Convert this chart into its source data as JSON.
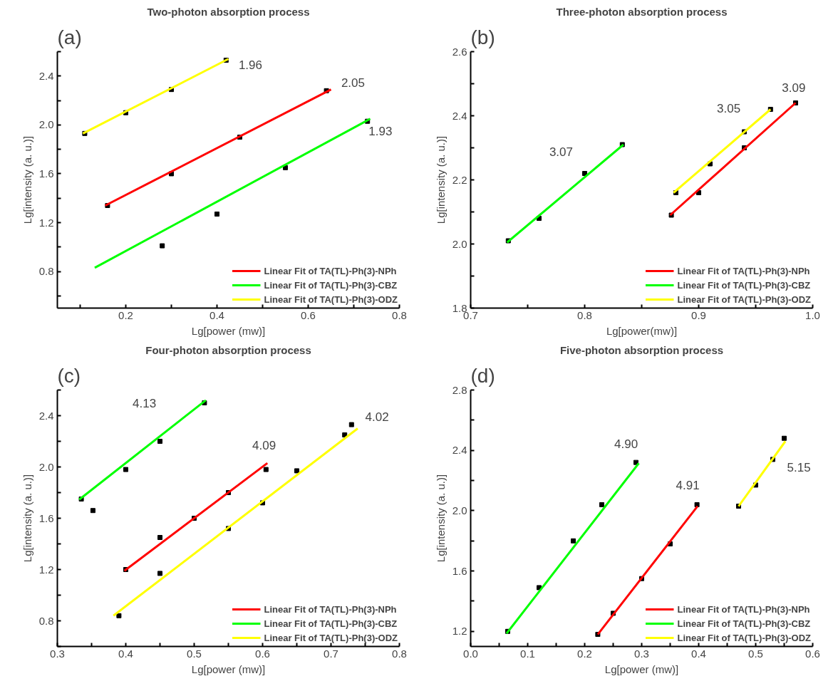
{
  "chart_data": [
    {
      "type": "line",
      "title": "Two-photon absorption process",
      "xlabel": "Lg[power (mw)]",
      "ylabel": "Lg[intensity (a. u.)]",
      "xlim": [
        0.05,
        0.8
      ],
      "ylim": [
        0.5,
        2.6
      ],
      "xticks": [
        {
          "value": 0.1,
          "label": null
        },
        0.2,
        {
          "value": 0.3,
          "label": null
        },
        0.4,
        {
          "value": 0.5,
          "label": null
        },
        0.6,
        {
          "value": 0.7,
          "label": null
        },
        0.8
      ],
      "yticks": [
        {
          "value": 0.6,
          "label": null
        },
        0.8,
        {
          "value": 1.0,
          "label": null
        },
        1.2,
        {
          "value": 1.4,
          "label": null
        },
        1.6,
        {
          "value": 1.8,
          "label": null
        },
        {
          "value": 2.0,
          "label": "2.0"
        },
        {
          "value": 2.2,
          "label": null
        },
        2.4,
        {
          "value": 2.6,
          "label": null
        }
      ],
      "grid": false,
      "legend": "bottom right",
      "annotations": [
        "(a)",
        "1.96",
        "2.05",
        "1.93"
      ],
      "series": [
        {
          "type": "scatter",
          "color": "#000000",
          "marker": "square",
          "x": [
            0.11,
            0.2,
            0.3,
            0.42
          ],
          "values": [
            1.93,
            2.1,
            2.29,
            2.53
          ]
        },
        {
          "type": "scatter",
          "color": "#000000",
          "marker": "square",
          "x": [
            0.16,
            0.3,
            0.45,
            0.64
          ],
          "values": [
            1.34,
            1.6,
            1.9,
            2.28
          ]
        },
        {
          "type": "scatter",
          "color": "#000000",
          "marker": "square",
          "x": [
            0.28,
            0.4,
            0.55,
            0.73
          ],
          "values": [
            1.01,
            1.27,
            1.65,
            2.03
          ]
        },
        {
          "name": "Linear Fit of TA(TL)-Ph(3)-NPh",
          "color": "#ff0000",
          "x": [
            0.155,
            0.65
          ],
          "values": [
            1.34,
            2.29
          ]
        },
        {
          "name": "Linear Fit of TA(TL)-Ph(3)-CBZ",
          "color": "#00ff00",
          "x": [
            0.132,
            0.736
          ],
          "values": [
            0.83,
            2.05
          ]
        },
        {
          "name": "Linear Fit of TA(TL)-Ph(3)-ODZ",
          "color": "#ffff00",
          "x": [
            0.106,
            0.425
          ],
          "values": [
            1.93,
            2.54
          ]
        }
      ]
    },
    {
      "type": "line",
      "title": "Three-photon absorption process",
      "xlabel": "Lg[power(mw)]",
      "ylabel": "Lg[intensity (a. u.)]",
      "xlim": [
        0.7,
        1.0
      ],
      "ylim": [
        1.8,
        2.6
      ],
      "xticks": [
        0.7,
        {
          "value": 0.75,
          "label": null
        },
        0.8,
        {
          "value": 0.85,
          "label": null
        },
        0.9,
        {
          "value": 0.95,
          "label": null
        },
        {
          "value": 1.0,
          "label": "1.0"
        }
      ],
      "yticks": [
        1.8,
        {
          "value": 1.9,
          "label": null
        },
        {
          "value": 2.0,
          "label": "2.0"
        },
        {
          "value": 2.1,
          "label": null
        },
        2.2,
        {
          "value": 2.3,
          "label": null
        },
        2.4,
        {
          "value": 2.5,
          "label": null
        },
        2.6
      ],
      "grid": false,
      "legend": "bottom right",
      "annotations": [
        "(b)",
        "3.07",
        "3.05",
        "3.09"
      ],
      "series": [
        {
          "type": "scatter",
          "color": "#000000",
          "marker": "square",
          "x": [
            0.733,
            0.76,
            0.8,
            0.833
          ],
          "values": [
            2.01,
            2.08,
            2.22,
            2.31
          ]
        },
        {
          "type": "scatter",
          "color": "#000000",
          "marker": "square",
          "x": [
            0.876,
            0.9,
            0.94,
            0.985
          ],
          "values": [
            2.09,
            2.16,
            2.3,
            2.44
          ]
        },
        {
          "type": "scatter",
          "color": "#000000",
          "marker": "square",
          "x": [
            0.88,
            0.91,
            0.94,
            0.963
          ],
          "values": [
            2.16,
            2.25,
            2.35,
            2.42
          ]
        },
        {
          "name": "Linear Fit of TA(TL)-Ph(3)-NPh",
          "color": "#ff0000",
          "x": [
            0.875,
            0.985
          ],
          "values": [
            2.09,
            2.44
          ]
        },
        {
          "name": "Linear Fit of TA(TL)-Ph(3)-CBZ",
          "color": "#00ff00",
          "x": [
            0.732,
            0.834
          ],
          "values": [
            2.005,
            2.31
          ]
        },
        {
          "name": "Linear Fit of TA(TL)-Ph(3)-ODZ",
          "color": "#ffff00",
          "x": [
            0.878,
            0.963
          ],
          "values": [
            2.16,
            2.42
          ]
        }
      ]
    },
    {
      "type": "line",
      "title": "Four-photon absorption process",
      "xlabel": "Lg[power (mw)]",
      "ylabel": "Lg[intensity (a. u.)]",
      "xlim": [
        0.3,
        0.8
      ],
      "ylim": [
        0.6,
        2.6
      ],
      "xticks": [
        0.3,
        {
          "value": 0.35,
          "label": null
        },
        0.4,
        {
          "value": 0.45,
          "label": null
        },
        0.5,
        {
          "value": 0.55,
          "label": null
        },
        0.6,
        {
          "value": 0.65,
          "label": null
        },
        0.7,
        {
          "value": 0.75,
          "label": null
        },
        0.8
      ],
      "yticks": [
        {
          "value": 0.6,
          "label": null
        },
        0.8,
        {
          "value": 1.0,
          "label": null
        },
        1.2,
        {
          "value": 1.4,
          "label": null
        },
        1.6,
        {
          "value": 1.8,
          "label": null
        },
        {
          "value": 2.0,
          "label": "2.0"
        },
        {
          "value": 2.2,
          "label": null
        },
        2.4,
        {
          "value": 2.6,
          "label": null
        }
      ],
      "grid": false,
      "legend": "bottom right",
      "annotations": [
        "(c)",
        "4.13",
        "4.09",
        "4.02"
      ],
      "series": [
        {
          "type": "scatter",
          "color": "#000000",
          "marker": "square",
          "x": [
            0.335,
            0.352,
            0.4,
            0.45,
            0.515
          ],
          "values": [
            1.75,
            1.66,
            1.98,
            2.2,
            2.5
          ]
        },
        {
          "type": "scatter",
          "color": "#000000",
          "marker": "square",
          "x": [
            0.4,
            0.45,
            0.5,
            0.55,
            0.605
          ],
          "values": [
            1.2,
            1.45,
            1.6,
            1.8,
            1.98
          ]
        },
        {
          "type": "scatter",
          "color": "#000000",
          "marker": "square",
          "x": [
            0.39,
            0.45,
            0.55,
            0.6,
            0.65,
            0.72,
            0.73
          ],
          "values": [
            0.84,
            1.17,
            1.52,
            1.72,
            1.97,
            2.25,
            2.33
          ]
        },
        {
          "name": "Linear Fit of TA(TL)-Ph(3)-NPh",
          "color": "#ff0000",
          "x": [
            0.398,
            0.607
          ],
          "values": [
            1.19,
            2.03
          ]
        },
        {
          "name": "Linear Fit of TA(TL)-Ph(3)-CBZ",
          "color": "#00ff00",
          "x": [
            0.332,
            0.517
          ],
          "values": [
            1.746,
            2.52
          ]
        },
        {
          "name": "Linear Fit of TA(TL)-Ph(3)-ODZ",
          "color": "#ffff00",
          "x": [
            0.382,
            0.739
          ],
          "values": [
            0.84,
            2.3
          ]
        }
      ]
    },
    {
      "type": "line",
      "title": "Five-photon absorption process",
      "xlabel": "Lg[power (mw)]",
      "ylabel": "Lg[intensity (a. u.)]",
      "xlim": [
        0.0,
        0.6
      ],
      "ylim": [
        1.1,
        2.8
      ],
      "xticks": [
        {
          "value": 0.0,
          "label": "0.0"
        },
        {
          "value": 0.05,
          "label": null
        },
        0.1,
        {
          "value": 0.15,
          "label": null
        },
        0.2,
        {
          "value": 0.25,
          "label": null
        },
        0.3,
        {
          "value": 0.35,
          "label": null
        },
        0.4,
        {
          "value": 0.45,
          "label": null
        },
        0.5,
        {
          "value": 0.55,
          "label": null
        },
        0.6
      ],
      "yticks": [
        1.2,
        {
          "value": 1.4,
          "label": null
        },
        1.6,
        {
          "value": 1.8,
          "label": null
        },
        {
          "value": 2.0,
          "label": "2.0"
        },
        {
          "value": 2.2,
          "label": null
        },
        2.4,
        {
          "value": 2.6,
          "label": null
        },
        2.8
      ],
      "grid": false,
      "legend": "bottom right",
      "annotations": [
        "(d)",
        "4.90",
        "4.91",
        "5.15"
      ],
      "series": [
        {
          "type": "scatter",
          "color": "#000000",
          "marker": "square",
          "x": [
            0.065,
            0.12,
            0.18,
            0.23,
            0.29
          ],
          "values": [
            1.2,
            1.49,
            1.8,
            2.04,
            2.32
          ]
        },
        {
          "type": "scatter",
          "color": "#000000",
          "marker": "square",
          "x": [
            0.223,
            0.25,
            0.3,
            0.35,
            0.397
          ],
          "values": [
            1.18,
            1.32,
            1.55,
            1.78,
            2.04
          ]
        },
        {
          "type": "scatter",
          "color": "#000000",
          "marker": "square",
          "x": [
            0.47,
            0.5,
            0.53,
            0.55
          ],
          "values": [
            2.03,
            2.17,
            2.34,
            2.48
          ]
        },
        {
          "name": "Linear Fit of TA(TL)-Ph(3)-NPh",
          "color": "#ff0000",
          "x": [
            0.223,
            0.398
          ],
          "values": [
            1.18,
            2.03
          ]
        },
        {
          "name": "Linear Fit of TA(TL)-Ph(3)-CBZ",
          "color": "#00ff00",
          "x": [
            0.063,
            0.295
          ],
          "values": [
            1.186,
            2.315
          ]
        },
        {
          "name": "Linear Fit of TA(TL)-Ph(3)-ODZ",
          "color": "#ffff00",
          "x": [
            0.47,
            0.552
          ],
          "values": [
            2.03,
            2.46
          ]
        }
      ]
    }
  ]
}
